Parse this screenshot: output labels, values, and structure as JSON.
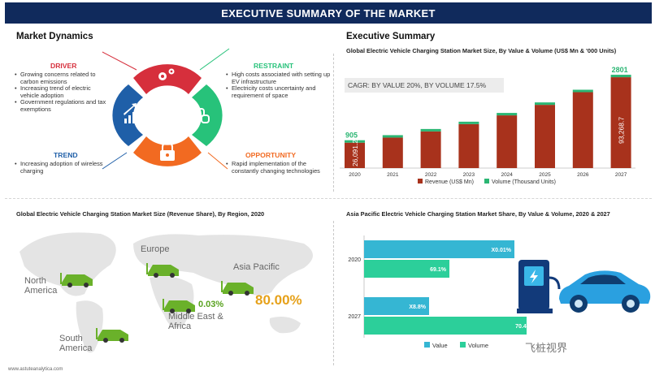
{
  "banner": {
    "title": "EXECUTIVE SUMMARY OF THE MARKET"
  },
  "dynamics": {
    "title": "Market Dynamics",
    "driver": {
      "heading": "DRIVER",
      "color": "#d62f3c",
      "items": [
        "Growing concerns related to carbon emissions",
        "Increasing trend of electric vehicle adoption",
        "Government regulations and tax exemptions"
      ]
    },
    "restraint": {
      "heading": "RESTRAINT",
      "color": "#27c27a",
      "items": [
        "High costs associated with setting up EV infrastructure",
        "Electricity costs uncertainty and requirement of space"
      ]
    },
    "trend": {
      "heading": "TREND",
      "color": "#1f5fa8",
      "items": [
        "Increasing adoption of wireless charging"
      ]
    },
    "opportunity": {
      "heading": "OPPORTUNITY",
      "color": "#f26a21",
      "items": [
        "Rapid implementation of the constantly changing technologies"
      ]
    },
    "icons": [
      "gears-icon",
      "puzzle-link-icon",
      "lock-icon",
      "growth-chart-icon"
    ]
  },
  "exec": {
    "title": "Executive Summary",
    "chart_title": "Global Electric Vehicle Charging Station Market Size, By Value & Volume (US$ Mn & '000 Units)",
    "cagr": "CAGR: BY VALUE 20%, BY VOLUME 17.5%"
  },
  "region": {
    "title": "Global Electric Vehicle Charging Station Market Size (Revenue Share), By Region, 2020",
    "labels": {
      "north_america": "North America",
      "europe": "Europe",
      "asia_pacific": "Asia Pacific",
      "middle_east": "Middle East & Africa",
      "south_america": "South America"
    },
    "values": {
      "middle_east": "0.03%",
      "asia_pacific": "80.00%"
    },
    "colors": {
      "value_green": "#5aa321",
      "asia_orange": "#e6a11a",
      "car_green": "#6ab12a"
    }
  },
  "apac": {
    "title": "Asia Pacific Electric Vehicle Charging Station Market Share, By Value & Volume, 2020 & 2027"
  },
  "footer": {
    "url": "www.astuteanalytica.com"
  },
  "watermark": {
    "text": "飞桩视界"
  },
  "chart_data": [
    {
      "type": "bar",
      "title": "Global Electric Vehicle Charging Station Market Size, By Value & Volume (US$ Mn & '000 Units)",
      "categories": [
        "2020",
        "2021",
        "2022",
        "2023",
        "2024",
        "2025",
        "2026",
        "2027"
      ],
      "series": [
        {
          "name": "Revenue (US$ Mn)",
          "color": "#a8321c",
          "values": [
            26091.2,
            31300,
            37600,
            45100,
            54100,
            64900,
            77900,
            93268.7
          ]
        },
        {
          "name": "Volume (Thousand Units)",
          "color": "#2bb673",
          "values": [
            905,
            1063,
            1249,
            1468,
            1725,
            2027,
            2381,
            2801
          ]
        }
      ],
      "value_labels": {
        "2020_revenue": "26,091.2",
        "2027_revenue": "93,268.7",
        "2020_volume": "905",
        "2027_volume": "2801"
      },
      "legend": "bottom",
      "grid": false
    },
    {
      "type": "bar",
      "orientation": "horizontal",
      "title": "Asia Pacific Electric Vehicle Charging Station Market Share, By Value & Volume, 2020 & 2027",
      "categories": [
        "2020",
        "2027"
      ],
      "series": [
        {
          "name": "Value",
          "color": "#35b6d3",
          "labels": [
            "X0.01%",
            "X8.8%"
          ]
        },
        {
          "name": "Volume",
          "color": "#2ccf9a",
          "values": [
            69.1,
            70.4
          ],
          "labels": [
            "69.1%",
            "70.4%"
          ]
        }
      ],
      "legend": "bottom",
      "grid": false
    }
  ]
}
